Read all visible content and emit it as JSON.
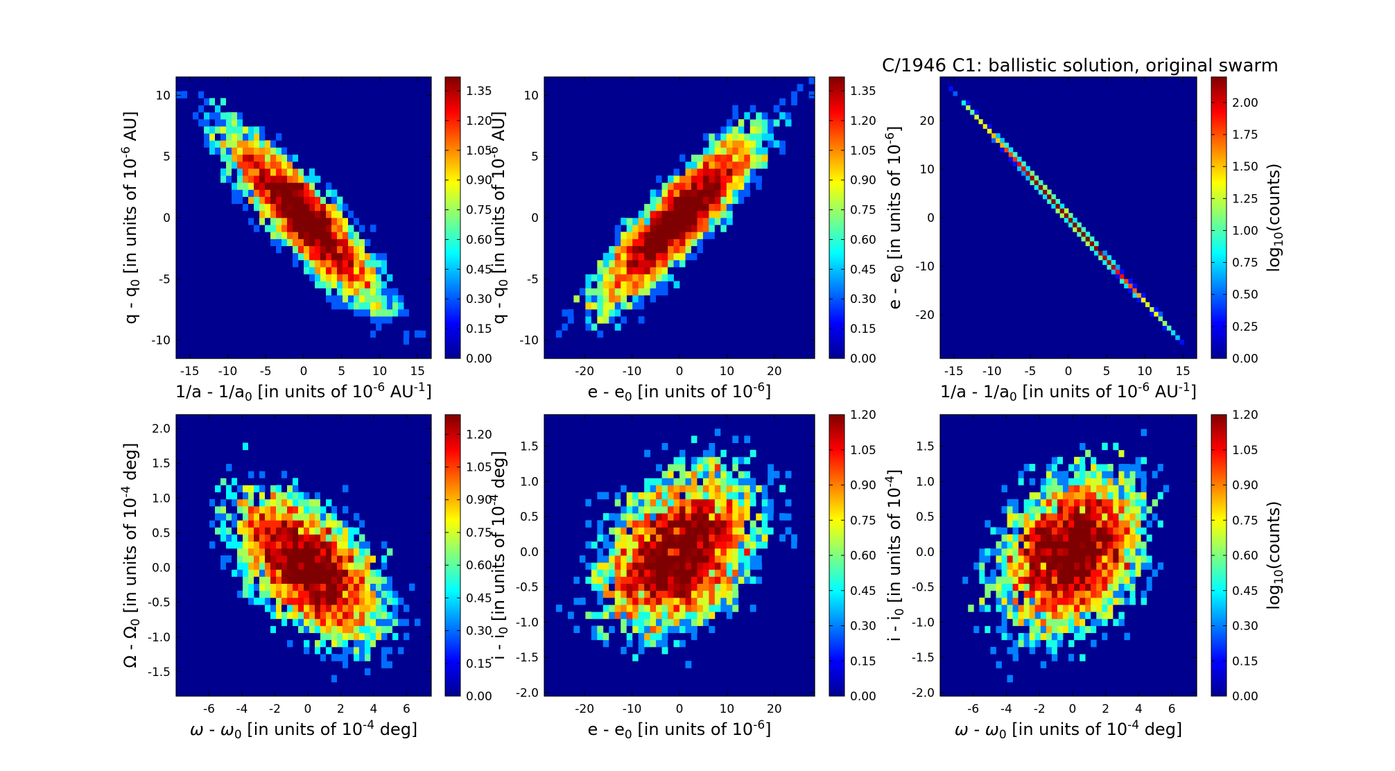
{
  "figure": {
    "title": "C/1946 C1:  ballistic solution, original swarm"
  },
  "colormap": {
    "name": "jet",
    "background": "#00008f",
    "stops": [
      "#00008f",
      "#0000ff",
      "#007fff",
      "#00ffff",
      "#7fff7f",
      "#ffff00",
      "#ff7f00",
      "#ff0000",
      "#7f0000"
    ]
  },
  "chart_data": [
    {
      "type": "heatmap",
      "xlabel_html": "1/a - 1/a<tspan font-size='17' dy='5'>0</tspan><tspan dy='-5'> [in units of 10</tspan><tspan font-size='17' dy='-9'>-6</tspan><tspan dy='9'> AU</tspan><tspan font-size='17' dy='-9'>-1</tspan><tspan dy='9'>]</tspan>",
      "ylabel_html": "q - q<tspan font-size='17' dy='5'>0</tspan><tspan dy='-5'> [in units of 10</tspan><tspan font-size='17' dy='-9'>-6</tspan><tspan dy='9'> AU]</tspan>",
      "xlim": [
        -16.8,
        16.8
      ],
      "ylim": [
        -11.5,
        11.5
      ],
      "xticks": [
        -15,
        -10,
        -5,
        0,
        5,
        10,
        15
      ],
      "yticks": [
        -10,
        -5,
        0,
        5,
        10
      ],
      "corr": -0.88,
      "sx": 5.2,
      "sy": 3.6,
      "n": 5000,
      "colorbar": {
        "ticks": [
          "0.00",
          "0.15",
          "0.30",
          "0.45",
          "0.60",
          "0.75",
          "0.90",
          "1.05",
          "1.20",
          "1.35"
        ],
        "max": 1.42,
        "label": ""
      }
    },
    {
      "type": "heatmap",
      "xlabel_html": "e - e<tspan font-size='17' dy='5'>0</tspan><tspan dy='-5'> [in units of 10</tspan><tspan font-size='17' dy='-9'>-6</tspan><tspan dy='9'>]</tspan>",
      "ylabel_html": "q - q<tspan font-size='17' dy='5'>0</tspan><tspan dy='-5'> [in units of 10</tspan><tspan font-size='17' dy='-9'>-6</tspan><tspan dy='9'> AU]</tspan>",
      "xlim": [
        -28.5,
        28.5
      ],
      "ylim": [
        -11.5,
        11.5
      ],
      "xticks": [
        -20,
        -10,
        0,
        10,
        20
      ],
      "yticks": [
        -10,
        -5,
        0,
        5,
        10
      ],
      "corr": 0.88,
      "sx": 8.6,
      "sy": 3.6,
      "n": 5000,
      "colorbar": {
        "ticks": [
          "0.00",
          "0.15",
          "0.30",
          "0.45",
          "0.60",
          "0.75",
          "0.90",
          "1.05",
          "1.20",
          "1.35"
        ],
        "max": 1.42,
        "label": ""
      }
    },
    {
      "type": "heatmap",
      "xlabel_html": "1/a - 1/a<tspan font-size='17' dy='5'>0</tspan><tspan dy='-5'> [in units of 10</tspan><tspan font-size='17' dy='-9'>-6</tspan><tspan dy='9'> AU</tspan><tspan font-size='17' dy='-9'>-1</tspan><tspan dy='9'>]</tspan>",
      "ylabel_html": "e - e<tspan font-size='17' dy='5'>0</tspan><tspan dy='-5'> [in units of 10</tspan><tspan font-size='17' dy='-9'>-6</tspan><tspan dy='9'>]</tspan>",
      "xlim": [
        -16.8,
        16.8
      ],
      "ylim": [
        -29,
        29
      ],
      "xticks": [
        -15,
        -10,
        -5,
        0,
        5,
        10,
        15
      ],
      "yticks": [
        -20,
        -10,
        0,
        10,
        20
      ],
      "line": true,
      "slope": -1.73,
      "corr": -1.0,
      "sx": 5.2,
      "sy": 9.0,
      "n": 5000,
      "colorbar": {
        "ticks": [
          "0.00",
          "0.25",
          "0.50",
          "0.75",
          "1.00",
          "1.25",
          "1.50",
          "1.75",
          "2.00"
        ],
        "max": 2.2,
        "label": "log<tspan font-size='17' dy='5'>10</tspan><tspan dy='-5'>(counts)</tspan>"
      }
    },
    {
      "type": "heatmap",
      "xlabel_html": "<tspan font-style='italic'>ω</tspan> - <tspan font-style='italic'>ω</tspan><tspan font-size='17' dy='5'>0</tspan><tspan dy='-5'> [in units of 10</tspan><tspan font-size='17' dy='-9'>-4</tspan><tspan dy='9'> deg]</tspan>",
      "ylabel_html": "Ω - Ω<tspan font-size='17' dy='5'>0</tspan><tspan dy='-5'> [in units of 10</tspan><tspan font-size='17' dy='-9'>-4</tspan><tspan dy='9'> deg]</tspan>",
      "xlim": [
        -8.0,
        7.5
      ],
      "ylim": [
        -1.85,
        2.2
      ],
      "xticks": [
        -6,
        -4,
        -2,
        0,
        2,
        4,
        6
      ],
      "yticks": [
        -1.5,
        -1.0,
        -0.5,
        0.0,
        0.5,
        1.0,
        1.5,
        2.0
      ],
      "ytickfmt": 1,
      "corr": -0.55,
      "sx": 2.3,
      "sy": 0.55,
      "n": 5000,
      "colorbar": {
        "ticks": [
          "0.00",
          "0.15",
          "0.30",
          "0.45",
          "0.60",
          "0.75",
          "0.90",
          "1.05",
          "1.20"
        ],
        "max": 1.29,
        "label": ""
      }
    },
    {
      "type": "heatmap",
      "xlabel_html": "e - e<tspan font-size='17' dy='5'>0</tspan><tspan dy='-5'> [in units of 10</tspan><tspan font-size='17' dy='-9'>-6</tspan><tspan dy='9'>]</tspan>",
      "ylabel_html": "i - i<tspan font-size='17' dy='5'>0</tspan><tspan dy='-5'> [in units of 10</tspan><tspan font-size='17' dy='-9'>-4</tspan><tspan dy='9'> deg]</tspan>",
      "xlim": [
        -28.5,
        28.5
      ],
      "ylim": [
        -2.05,
        1.95
      ],
      "xticks": [
        -20,
        -10,
        0,
        10,
        20
      ],
      "yticks": [
        -2.0,
        -1.5,
        -1.0,
        -0.5,
        0.0,
        0.5,
        1.0,
        1.5
      ],
      "ytickfmt": 1,
      "corr": 0.35,
      "sx": 8.6,
      "sy": 0.6,
      "n": 5000,
      "colorbar": {
        "ticks": [
          "0.00",
          "0.15",
          "0.30",
          "0.45",
          "0.60",
          "0.75",
          "0.90",
          "1.05",
          "1.20"
        ],
        "max": 1.2,
        "label": ""
      }
    },
    {
      "type": "heatmap",
      "xlabel_html": "<tspan font-style='italic'>ω</tspan> - <tspan font-style='italic'>ω</tspan><tspan font-size='17' dy='5'>0</tspan><tspan dy='-5'> [in units of 10</tspan><tspan font-size='17' dy='-9'>-4</tspan><tspan dy='9'> deg]</tspan>",
      "ylabel_html": "i - i<tspan font-size='17' dy='5'>0</tspan><tspan dy='-5'> [in units of 10</tspan><tspan font-size='17' dy='-9'>-4</tspan><tspan dy='9'>]</tspan>",
      "xlim": [
        -8.0,
        7.5
      ],
      "ylim": [
        -2.05,
        1.95
      ],
      "xticks": [
        -6,
        -4,
        -2,
        0,
        2,
        4,
        6
      ],
      "yticks": [
        -2.0,
        -1.5,
        -1.0,
        -0.5,
        0.0,
        0.5,
        1.0,
        1.5
      ],
      "ytickfmt": 1,
      "corr": 0.3,
      "sx": 2.3,
      "sy": 0.6,
      "n": 5000,
      "colorbar": {
        "ticks": [
          "0.00",
          "0.15",
          "0.30",
          "0.45",
          "0.60",
          "0.75",
          "0.90",
          "1.05",
          "1.20"
        ],
        "max": 1.2,
        "label": "log<tspan font-size='17' dy='5'>10</tspan><tspan dy='-5'>(counts)</tspan>"
      }
    }
  ]
}
